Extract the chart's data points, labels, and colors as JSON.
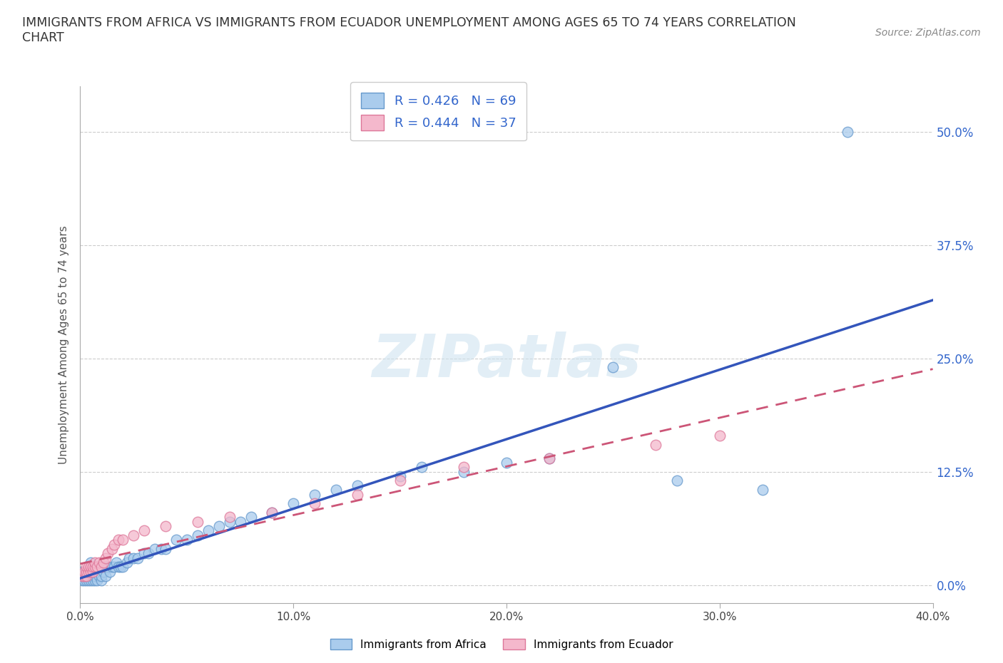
{
  "title": "IMMIGRANTS FROM AFRICA VS IMMIGRANTS FROM ECUADOR UNEMPLOYMENT AMONG AGES 65 TO 74 YEARS CORRELATION\nCHART",
  "source_text": "Source: ZipAtlas.com",
  "ylabel": "Unemployment Among Ages 65 to 74 years",
  "xlim": [
    0.0,
    0.4
  ],
  "ylim": [
    -0.02,
    0.55
  ],
  "yticks": [
    0.0,
    0.125,
    0.25,
    0.375,
    0.5
  ],
  "ytick_labels": [
    "0.0%",
    "12.5%",
    "25.0%",
    "37.5%",
    "50.0%"
  ],
  "xticks": [
    0.0,
    0.1,
    0.2,
    0.3,
    0.4
  ],
  "xtick_labels": [
    "0.0%",
    "10.0%",
    "20.0%",
    "30.0%",
    "40.0%"
  ],
  "africa_color": "#aacced",
  "africa_edge": "#6699cc",
  "ecuador_color": "#f4b8cc",
  "ecuador_edge": "#dd7799",
  "africa_line_color": "#3355bb",
  "ecuador_line_color": "#cc5577",
  "africa_R": 0.426,
  "africa_N": 69,
  "ecuador_R": 0.444,
  "ecuador_N": 37,
  "legend_color": "#3366cc",
  "watermark": "ZIPatlas",
  "africa_x": [
    0.001,
    0.001,
    0.001,
    0.002,
    0.002,
    0.003,
    0.003,
    0.003,
    0.004,
    0.004,
    0.005,
    0.005,
    0.005,
    0.005,
    0.005,
    0.006,
    0.006,
    0.007,
    0.007,
    0.007,
    0.008,
    0.008,
    0.009,
    0.009,
    0.01,
    0.01,
    0.01,
    0.011,
    0.012,
    0.012,
    0.013,
    0.014,
    0.015,
    0.016,
    0.017,
    0.018,
    0.019,
    0.02,
    0.022,
    0.023,
    0.025,
    0.027,
    0.03,
    0.032,
    0.035,
    0.038,
    0.04,
    0.045,
    0.05,
    0.055,
    0.06,
    0.065,
    0.07,
    0.075,
    0.08,
    0.09,
    0.1,
    0.11,
    0.12,
    0.13,
    0.15,
    0.16,
    0.18,
    0.2,
    0.22,
    0.25,
    0.28,
    0.32,
    0.36
  ],
  "africa_y": [
    0.005,
    0.01,
    0.015,
    0.005,
    0.01,
    0.005,
    0.01,
    0.015,
    0.005,
    0.015,
    0.005,
    0.01,
    0.015,
    0.02,
    0.025,
    0.005,
    0.01,
    0.005,
    0.01,
    0.02,
    0.005,
    0.015,
    0.01,
    0.02,
    0.005,
    0.01,
    0.02,
    0.015,
    0.01,
    0.02,
    0.02,
    0.015,
    0.02,
    0.02,
    0.025,
    0.02,
    0.02,
    0.02,
    0.025,
    0.03,
    0.03,
    0.03,
    0.035,
    0.035,
    0.04,
    0.04,
    0.04,
    0.05,
    0.05,
    0.055,
    0.06,
    0.065,
    0.07,
    0.07,
    0.075,
    0.08,
    0.09,
    0.1,
    0.105,
    0.11,
    0.12,
    0.13,
    0.125,
    0.135,
    0.14,
    0.24,
    0.115,
    0.105,
    0.5
  ],
  "ecuador_x": [
    0.001,
    0.002,
    0.002,
    0.003,
    0.003,
    0.003,
    0.004,
    0.004,
    0.005,
    0.005,
    0.006,
    0.006,
    0.007,
    0.007,
    0.008,
    0.009,
    0.01,
    0.011,
    0.012,
    0.013,
    0.015,
    0.016,
    0.018,
    0.02,
    0.025,
    0.03,
    0.04,
    0.055,
    0.07,
    0.09,
    0.11,
    0.13,
    0.15,
    0.18,
    0.22,
    0.27,
    0.3
  ],
  "ecuador_y": [
    0.01,
    0.01,
    0.015,
    0.01,
    0.015,
    0.02,
    0.015,
    0.02,
    0.015,
    0.02,
    0.015,
    0.02,
    0.02,
    0.025,
    0.02,
    0.025,
    0.02,
    0.025,
    0.03,
    0.035,
    0.04,
    0.045,
    0.05,
    0.05,
    0.055,
    0.06,
    0.065,
    0.07,
    0.075,
    0.08,
    0.09,
    0.1,
    0.115,
    0.13,
    0.14,
    0.155,
    0.165
  ]
}
